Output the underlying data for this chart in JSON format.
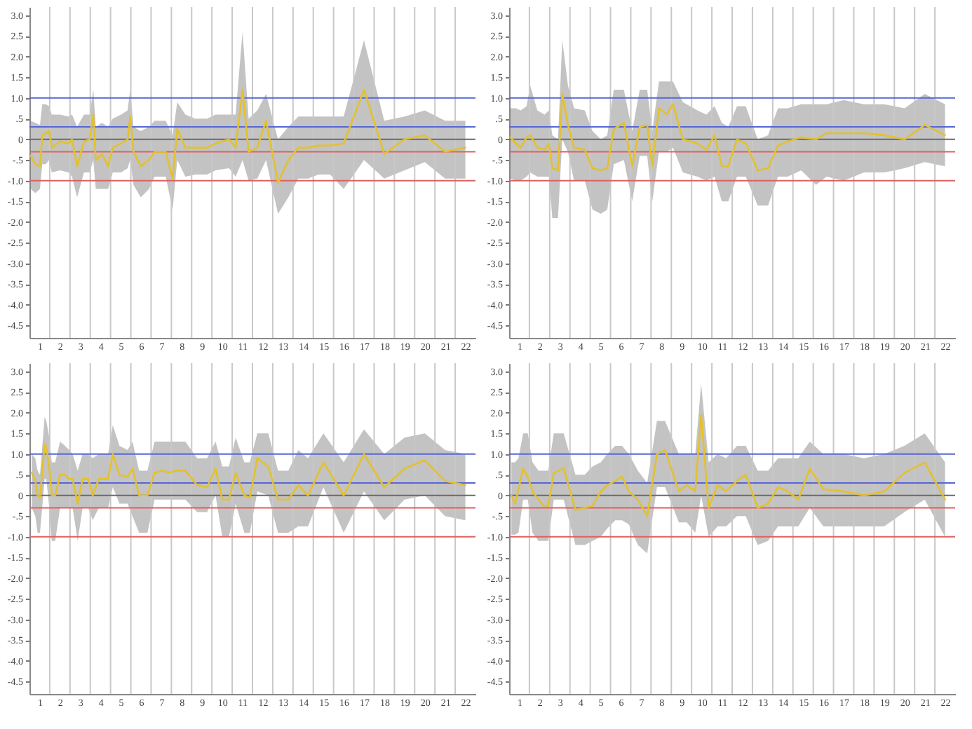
{
  "chart_data": [
    {
      "type": "line",
      "xlim": [
        0.5,
        22.5
      ],
      "ylim": [
        -4.8,
        3.2
      ],
      "xticks": [
        1,
        2,
        3,
        4,
        5,
        6,
        7,
        8,
        9,
        10,
        11,
        12,
        13,
        14,
        15,
        16,
        17,
        18,
        19,
        20,
        21,
        22
      ],
      "yticks": [
        {
          "value": 3,
          "label": "3.0"
        },
        2.5,
        {
          "value": 2,
          "label": "2.0"
        },
        1.5,
        {
          "value": 1,
          "label": "1.0"
        },
        {
          "value": 0.5,
          "label": ".5"
        },
        0,
        {
          "value": -0.5,
          "label": "-.5"
        },
        {
          "value": -1,
          "label": "-1.0"
        },
        -1.5,
        {
          "value": -2,
          "label": "-2.0"
        },
        -2.5,
        {
          "value": -3,
          "label": "-3.0"
        },
        -3.5,
        {
          "value": -4,
          "label": "-4.0"
        },
        -4.5
      ],
      "ref_lines": [
        {
          "axis": "x",
          "value": 1.5,
          "color": "#c8c8c8"
        },
        {
          "axis": "x",
          "value": 2.5,
          "color": "#c8c8c8"
        },
        {
          "axis": "x",
          "value": 3.5,
          "color": "#c8c8c8"
        },
        {
          "axis": "x",
          "value": 4.5,
          "color": "#c8c8c8"
        },
        {
          "axis": "x",
          "value": 5.5,
          "color": "#c8c8c8"
        },
        {
          "axis": "x",
          "value": 6.5,
          "color": "#c8c8c8"
        },
        {
          "axis": "x",
          "value": 7.5,
          "color": "#c8c8c8"
        },
        {
          "axis": "x",
          "value": 8.5,
          "color": "#c8c8c8"
        },
        {
          "axis": "x",
          "value": 9.5,
          "color": "#c8c8c8"
        },
        {
          "axis": "x",
          "value": 10.5,
          "color": "#c8c8c8"
        },
        {
          "axis": "x",
          "value": 11.5,
          "color": "#c8c8c8"
        },
        {
          "axis": "x",
          "value": 12.5,
          "color": "#c8c8c8"
        },
        {
          "axis": "x",
          "value": 13.5,
          "color": "#c8c8c8"
        },
        {
          "axis": "x",
          "value": 14.5,
          "color": "#c8c8c8"
        },
        {
          "axis": "x",
          "value": 15.5,
          "color": "#c8c8c8"
        },
        {
          "axis": "x",
          "value": 16.5,
          "color": "#c8c8c8"
        },
        {
          "axis": "x",
          "value": 17.5,
          "color": "#c8c8c8"
        },
        {
          "axis": "x",
          "value": 18.5,
          "color": "#c8c8c8"
        },
        {
          "axis": "x",
          "value": 19.5,
          "color": "#c8c8c8"
        },
        {
          "axis": "x",
          "value": 20.5,
          "color": "#c8c8c8"
        },
        {
          "axis": "x",
          "value": 21.5,
          "color": "#c8c8c8"
        },
        {
          "axis": "y",
          "value": 1.0,
          "color": "#5566d4"
        },
        {
          "axis": "y",
          "value": 0.3,
          "color": "#5566d4"
        },
        {
          "axis": "y",
          "value": 0,
          "color": "#6a6a6a"
        },
        {
          "axis": "y",
          "value": -0.3,
          "color": "#e06060"
        },
        {
          "axis": "y",
          "value": -1.0,
          "color": "#e06060"
        }
      ],
      "x": [
        0.56,
        0.79,
        1.02,
        1.13,
        1.3,
        1.48,
        1.6,
        2.01,
        2.43,
        2.6,
        2.85,
        3.19,
        3.47,
        3.65,
        3.77,
        4.08,
        4.38,
        4.61,
        5.02,
        5.34,
        5.47,
        5.63,
        5.99,
        6.4,
        6.67,
        7.22,
        7.56,
        7.79,
        8.19,
        8.68,
        9.26,
        9.68,
        10.34,
        10.67,
        11.01,
        11.31,
        11.74,
        12.17,
        12.76,
        13.27,
        13.76,
        14.24,
        14.76,
        15.33,
        16,
        17,
        18,
        19,
        20,
        21,
        22
      ],
      "series": [
        {
          "color": "#e3c12e",
          "values": [
            -0.4,
            -0.6,
            -0.65,
            0.1,
            0.15,
            0.2,
            -0.2,
            -0.05,
            -0.1,
            0,
            -0.65,
            -0.05,
            0,
            0.6,
            -0.5,
            -0.35,
            -0.65,
            -0.2,
            -0.1,
            0,
            0.55,
            -0.3,
            -0.65,
            -0.5,
            -0.3,
            -0.3,
            -0.95,
            0.25,
            -0.2,
            -0.2,
            -0.2,
            -0.1,
            0,
            -0.2,
            1.2,
            -0.3,
            -0.2,
            0.45,
            -1.05,
            -0.5,
            -0.2,
            -0.2,
            -0.15,
            -0.15,
            -0.1,
            1.2,
            -0.35,
            0,
            0.1,
            -0.3,
            -0.2
          ],
          "lower": [
            -1.2,
            -1.3,
            -1.2,
            -0.6,
            -0.6,
            -0.5,
            -0.8,
            -0.75,
            -0.8,
            -0.9,
            -1.4,
            -0.8,
            -0.8,
            -0.5,
            -1.2,
            -1.2,
            -1.2,
            -0.8,
            -0.8,
            -0.7,
            -0.5,
            -1.1,
            -1.4,
            -1.2,
            -0.9,
            -0.9,
            -1.7,
            -0.5,
            -0.9,
            -0.85,
            -0.85,
            -0.75,
            -0.7,
            -0.9,
            -0.5,
            -1.0,
            -0.95,
            -0.5,
            -1.8,
            -1.4,
            -0.95,
            -0.95,
            -0.85,
            -0.85,
            -1.2,
            -0.5,
            -0.95,
            -0.75,
            -0.55,
            -0.95,
            -0.95
          ],
          "upper": [
            0.45,
            0.4,
            0.35,
            0.85,
            0.85,
            0.8,
            0.6,
            0.6,
            0.55,
            0.6,
            0.3,
            0.6,
            0.6,
            1.2,
            0.3,
            0.4,
            0.3,
            0.5,
            0.6,
            0.7,
            1.2,
            0.3,
            0.2,
            0.3,
            0.45,
            0.45,
            0.1,
            0.9,
            0.6,
            0.5,
            0.5,
            0.6,
            0.6,
            0.6,
            2.6,
            0.5,
            0.7,
            1.1,
            0.0,
            0.3,
            0.55,
            0.55,
            0.55,
            0.55,
            0.55,
            2.4,
            0.45,
            0.55,
            0.7,
            0.45,
            0.45
          ]
        }
      ]
    },
    {
      "type": "line",
      "xlim": [
        0.5,
        22.5
      ],
      "ylim": [
        -4.8,
        3.2
      ],
      "xticks": [
        1,
        2,
        3,
        4,
        5,
        6,
        7,
        8,
        9,
        10,
        11,
        12,
        13,
        14,
        15,
        16,
        17,
        18,
        19,
        20,
        21,
        22
      ],
      "yticks": [
        {
          "value": 3,
          "label": "3.0"
        },
        2.5,
        {
          "value": 2,
          "label": "2.0"
        },
        1.5,
        {
          "value": 1,
          "label": "1.0"
        },
        {
          "value": 0.5,
          "label": ".5"
        },
        0,
        {
          "value": -0.5,
          "label": "-.5"
        },
        {
          "value": -1,
          "label": "-1.0"
        },
        -1.5,
        {
          "value": -2,
          "label": "-2.0"
        },
        -2.5,
        {
          "value": -3,
          "label": "-3.0"
        },
        -3.5,
        {
          "value": -4,
          "label": "-4.0"
        },
        -4.5
      ],
      "ref_lines": [
        {
          "axis": "x",
          "value": 1.5,
          "color": "#c8c8c8"
        },
        {
          "axis": "x",
          "value": 2.5,
          "color": "#c8c8c8"
        },
        {
          "axis": "x",
          "value": 3.5,
          "color": "#c8c8c8"
        },
        {
          "axis": "x",
          "value": 4.5,
          "color": "#c8c8c8"
        },
        {
          "axis": "x",
          "value": 5.5,
          "color": "#c8c8c8"
        },
        {
          "axis": "x",
          "value": 6.5,
          "color": "#c8c8c8"
        },
        {
          "axis": "x",
          "value": 7.5,
          "color": "#c8c8c8"
        },
        {
          "axis": "x",
          "value": 8.5,
          "color": "#c8c8c8"
        },
        {
          "axis": "x",
          "value": 9.5,
          "color": "#c8c8c8"
        },
        {
          "axis": "x",
          "value": 10.5,
          "color": "#c8c8c8"
        },
        {
          "axis": "x",
          "value": 11.5,
          "color": "#c8c8c8"
        },
        {
          "axis": "x",
          "value": 12.5,
          "color": "#c8c8c8"
        },
        {
          "axis": "x",
          "value": 13.5,
          "color": "#c8c8c8"
        },
        {
          "axis": "x",
          "value": 14.5,
          "color": "#c8c8c8"
        },
        {
          "axis": "x",
          "value": 15.5,
          "color": "#c8c8c8"
        },
        {
          "axis": "x",
          "value": 16.5,
          "color": "#c8c8c8"
        },
        {
          "axis": "x",
          "value": 17.5,
          "color": "#c8c8c8"
        },
        {
          "axis": "x",
          "value": 18.5,
          "color": "#c8c8c8"
        },
        {
          "axis": "x",
          "value": 19.5,
          "color": "#c8c8c8"
        },
        {
          "axis": "x",
          "value": 20.5,
          "color": "#c8c8c8"
        },
        {
          "axis": "x",
          "value": 21.5,
          "color": "#c8c8c8"
        },
        {
          "axis": "y",
          "value": 1.0,
          "color": "#5566d4"
        },
        {
          "axis": "y",
          "value": 0.3,
          "color": "#5566d4"
        },
        {
          "axis": "y",
          "value": 0,
          "color": "#6a6a6a"
        },
        {
          "axis": "y",
          "value": -0.3,
          "color": "#e06060"
        },
        {
          "axis": "y",
          "value": -1.0,
          "color": "#e06060"
        }
      ],
      "x": [
        0.56,
        0.84,
        1.07,
        1.36,
        1.54,
        1.89,
        2.25,
        2.46,
        2.63,
        2.91,
        3.12,
        3.4,
        3.7,
        4.23,
        4.61,
        5.02,
        5.34,
        5.66,
        6.16,
        6.57,
        6.94,
        7.31,
        7.56,
        7.89,
        8.28,
        8.58,
        9.07,
        9.79,
        10.23,
        10.63,
        10.99,
        11.31,
        11.74,
        12.17,
        12.76,
        13.27,
        13.76,
        14.24,
        14.9,
        15.64,
        16.16,
        17,
        18,
        19,
        20,
        21,
        22
      ],
      "series": [
        {
          "color": "#e3c12e",
          "values": [
            0.05,
            -0.1,
            -0.2,
            0.05,
            0.1,
            -0.2,
            -0.25,
            -0.1,
            -0.7,
            -0.75,
            1.1,
            0.35,
            -0.2,
            -0.25,
            -0.7,
            -0.75,
            -0.7,
            0.25,
            0.4,
            -0.65,
            0.3,
            0.35,
            -0.65,
            0.75,
            0.6,
            0.85,
            0,
            -0.1,
            -0.25,
            0.1,
            -0.65,
            -0.65,
            0,
            -0.1,
            -0.75,
            -0.7,
            -0.15,
            -0.05,
            0.05,
            0,
            0.15,
            0.15,
            0.15,
            0.1,
            0,
            0.35,
            0.1
          ],
          "lower": [
            -0.95,
            -1.0,
            -1.0,
            -0.9,
            -0.8,
            -0.9,
            -0.9,
            -0.9,
            -1.9,
            -1.9,
            0.0,
            -0.3,
            -1.0,
            -1.0,
            -1.7,
            -1.8,
            -1.7,
            -0.6,
            -0.5,
            -1.5,
            -0.4,
            -0.4,
            -1.5,
            -0.3,
            -0.3,
            -0.2,
            -0.8,
            -0.9,
            -1.0,
            -0.9,
            -1.5,
            -1.5,
            -0.9,
            -0.9,
            -1.6,
            -1.6,
            -0.9,
            -0.9,
            -0.75,
            -1.1,
            -0.9,
            -1.0,
            -0.8,
            -0.8,
            -0.7,
            -0.55,
            -0.65
          ],
          "upper": [
            0.75,
            0.75,
            0.7,
            0.8,
            1.3,
            0.7,
            0.6,
            0.7,
            0.1,
            0.0,
            2.4,
            1.3,
            0.75,
            0.7,
            0.2,
            0.0,
            0.1,
            1.2,
            1.2,
            0.2,
            1.2,
            1.2,
            0.2,
            1.4,
            1.4,
            1.4,
            0.9,
            0.7,
            0.6,
            0.8,
            0.4,
            0.3,
            0.8,
            0.8,
            0.0,
            0.1,
            0.75,
            0.75,
            0.85,
            0.85,
            0.85,
            0.95,
            0.85,
            0.85,
            0.75,
            1.1,
            0.85
          ]
        }
      ]
    },
    {
      "type": "line",
      "xlim": [
        0.5,
        22.5
      ],
      "ylim": [
        -4.8,
        3.2
      ],
      "xticks": [
        1,
        2,
        3,
        4,
        5,
        6,
        7,
        8,
        9,
        10,
        11,
        12,
        13,
        14,
        15,
        16,
        17,
        18,
        19,
        20,
        21,
        22
      ],
      "yticks": [
        {
          "value": 3,
          "label": "3.0"
        },
        2.5,
        {
          "value": 2,
          "label": "2.0"
        },
        1.5,
        {
          "value": 1,
          "label": "1.0"
        },
        {
          "value": 0.5,
          "label": ".5"
        },
        0,
        {
          "value": -0.5,
          "label": "-.5"
        },
        {
          "value": -1,
          "label": "-1.0"
        },
        -1.5,
        {
          "value": -2,
          "label": "-2.0"
        },
        -2.5,
        {
          "value": -3,
          "label": "-3.0"
        },
        -3.5,
        {
          "value": -4,
          "label": "-4.0"
        },
        -4.5
      ],
      "ref_lines": [
        {
          "axis": "x",
          "value": 1.5,
          "color": "#c8c8c8"
        },
        {
          "axis": "x",
          "value": 2.5,
          "color": "#c8c8c8"
        },
        {
          "axis": "x",
          "value": 3.5,
          "color": "#c8c8c8"
        },
        {
          "axis": "x",
          "value": 4.5,
          "color": "#c8c8c8"
        },
        {
          "axis": "x",
          "value": 5.5,
          "color": "#c8c8c8"
        },
        {
          "axis": "x",
          "value": 6.5,
          "color": "#c8c8c8"
        },
        {
          "axis": "x",
          "value": 7.5,
          "color": "#c8c8c8"
        },
        {
          "axis": "x",
          "value": 8.5,
          "color": "#c8c8c8"
        },
        {
          "axis": "x",
          "value": 9.5,
          "color": "#c8c8c8"
        },
        {
          "axis": "x",
          "value": 10.5,
          "color": "#c8c8c8"
        },
        {
          "axis": "x",
          "value": 11.5,
          "color": "#c8c8c8"
        },
        {
          "axis": "x",
          "value": 12.5,
          "color": "#c8c8c8"
        },
        {
          "axis": "x",
          "value": 13.5,
          "color": "#c8c8c8"
        },
        {
          "axis": "x",
          "value": 14.5,
          "color": "#c8c8c8"
        },
        {
          "axis": "x",
          "value": 15.5,
          "color": "#c8c8c8"
        },
        {
          "axis": "x",
          "value": 16.5,
          "color": "#c8c8c8"
        },
        {
          "axis": "x",
          "value": 17.5,
          "color": "#c8c8c8"
        },
        {
          "axis": "x",
          "value": 18.5,
          "color": "#c8c8c8"
        },
        {
          "axis": "x",
          "value": 19.5,
          "color": "#c8c8c8"
        },
        {
          "axis": "x",
          "value": 20.5,
          "color": "#c8c8c8"
        },
        {
          "axis": "x",
          "value": 21.5,
          "color": "#c8c8c8"
        },
        {
          "axis": "y",
          "value": 1.0,
          "color": "#5566d4"
        },
        {
          "axis": "y",
          "value": 0.3,
          "color": "#5566d4"
        },
        {
          "axis": "y",
          "value": 0,
          "color": "#6a6a6a"
        },
        {
          "axis": "y",
          "value": -0.3,
          "color": "#e06060"
        },
        {
          "axis": "y",
          "value": -1.0,
          "color": "#e06060"
        }
      ],
      "x": [
        0.61,
        0.79,
        0.9,
        1.02,
        1.25,
        1.33,
        1.48,
        1.6,
        1.77,
        2.01,
        2.25,
        2.46,
        2.63,
        2.88,
        3.12,
        3.4,
        3.62,
        3.92,
        4.38,
        4.61,
        4.94,
        5.34,
        5.58,
        5.91,
        6.32,
        6.67,
        7.04,
        7.41,
        7.7,
        8.19,
        8.77,
        9.26,
        9.68,
        10.01,
        10.34,
        10.67,
        11.1,
        11.37,
        11.74,
        12.28,
        12.76,
        13.27,
        13.76,
        14.24,
        15,
        16,
        17,
        18,
        19,
        20,
        21,
        22
      ],
      "series": [
        {
          "color": "#e3c12e",
          "values": [
            0.55,
            0.35,
            0,
            -0.05,
            1.25,
            1.15,
            0.65,
            0,
            0,
            0.5,
            0.5,
            0.4,
            0.4,
            -0.2,
            0.4,
            0.4,
            0,
            0.4,
            0.4,
            1.0,
            0.5,
            0.45,
            0.65,
            0,
            0,
            0.55,
            0.6,
            0.55,
            0.6,
            0.6,
            0.25,
            0.2,
            0.65,
            -0.1,
            -0.1,
            0.55,
            0,
            -0.05,
            0.9,
            0.7,
            -0.1,
            -0.1,
            0.25,
            0,
            0.8,
            0,
            1.0,
            0.2,
            0.65,
            0.85,
            0.35,
            0.25
          ],
          "lower": [
            -0.3,
            -0.5,
            -0.9,
            -0.9,
            0.4,
            0.4,
            -0.3,
            -1.1,
            -1.1,
            -0.3,
            -0.3,
            -0.3,
            -0.3,
            -1.1,
            -0.3,
            -0.3,
            -0.6,
            -0.3,
            -0.3,
            0.2,
            -0.2,
            -0.2,
            -0.5,
            -0.9,
            -0.9,
            -0.1,
            -0.1,
            -0.1,
            -0.1,
            -0.1,
            -0.4,
            -0.4,
            0,
            -1.0,
            -1.0,
            -0.2,
            -0.9,
            -0.9,
            0.1,
            0,
            -0.9,
            -0.9,
            -0.75,
            -0.75,
            0.2,
            -0.9,
            0.1,
            -0.6,
            -0.1,
            0,
            -0.5,
            -0.6
          ],
          "upper": [
            1.0,
            0.9,
            0.6,
            0.5,
            1.9,
            1.8,
            1.4,
            0.8,
            0.8,
            1.3,
            1.2,
            1.1,
            1.0,
            0.6,
            1.0,
            1.0,
            0.9,
            1.0,
            1.0,
            1.7,
            1.2,
            1.1,
            1.3,
            0.6,
            0.6,
            1.3,
            1.3,
            1.3,
            1.3,
            1.3,
            0.9,
            0.9,
            1.3,
            0.7,
            0.7,
            1.4,
            0.8,
            0.8,
            1.5,
            1.5,
            0.6,
            0.6,
            1.1,
            0.9,
            1.5,
            0.8,
            1.6,
            1.0,
            1.4,
            1.5,
            1.1,
            1.0
          ]
        }
      ]
    },
    {
      "type": "line",
      "xlim": [
        0.5,
        22.5
      ],
      "ylim": [
        -4.8,
        3.2
      ],
      "xticks": [
        1,
        2,
        3,
        4,
        5,
        6,
        7,
        8,
        9,
        10,
        11,
        12,
        13,
        14,
        15,
        16,
        17,
        18,
        19,
        20,
        21,
        22
      ],
      "yticks": [
        {
          "value": 3,
          "label": "3.0"
        },
        2.5,
        {
          "value": 2,
          "label": "2.0"
        },
        1.5,
        {
          "value": 1,
          "label": "1.0"
        },
        {
          "value": 0.5,
          "label": ".5"
        },
        0,
        {
          "value": -0.5,
          "label": "-.5"
        },
        {
          "value": -1,
          "label": "-1.0"
        },
        -1.5,
        {
          "value": -2,
          "label": "-2.0"
        },
        -2.5,
        {
          "value": -3,
          "label": "-3.0"
        },
        -3.5,
        {
          "value": -4,
          "label": "-4.0"
        },
        -4.5
      ],
      "ref_lines": [
        {
          "axis": "x",
          "value": 1.5,
          "color": "#c8c8c8"
        },
        {
          "axis": "x",
          "value": 2.5,
          "color": "#c8c8c8"
        },
        {
          "axis": "x",
          "value": 3.5,
          "color": "#c8c8c8"
        },
        {
          "axis": "x",
          "value": 4.5,
          "color": "#c8c8c8"
        },
        {
          "axis": "x",
          "value": 5.5,
          "color": "#c8c8c8"
        },
        {
          "axis": "x",
          "value": 6.5,
          "color": "#c8c8c8"
        },
        {
          "axis": "x",
          "value": 7.5,
          "color": "#c8c8c8"
        },
        {
          "axis": "x",
          "value": 8.5,
          "color": "#c8c8c8"
        },
        {
          "axis": "x",
          "value": 9.5,
          "color": "#c8c8c8"
        },
        {
          "axis": "x",
          "value": 10.5,
          "color": "#c8c8c8"
        },
        {
          "axis": "x",
          "value": 11.5,
          "color": "#c8c8c8"
        },
        {
          "axis": "x",
          "value": 12.5,
          "color": "#c8c8c8"
        },
        {
          "axis": "x",
          "value": 13.5,
          "color": "#c8c8c8"
        },
        {
          "axis": "x",
          "value": 14.5,
          "color": "#c8c8c8"
        },
        {
          "axis": "x",
          "value": 15.5,
          "color": "#c8c8c8"
        },
        {
          "axis": "x",
          "value": 16.5,
          "color": "#c8c8c8"
        },
        {
          "axis": "x",
          "value": 17.5,
          "color": "#c8c8c8"
        },
        {
          "axis": "x",
          "value": 18.5,
          "color": "#c8c8c8"
        },
        {
          "axis": "x",
          "value": 19.5,
          "color": "#c8c8c8"
        },
        {
          "axis": "x",
          "value": 20.5,
          "color": "#c8c8c8"
        },
        {
          "axis": "x",
          "value": 21.5,
          "color": "#c8c8c8"
        },
        {
          "axis": "y",
          "value": 1.0,
          "color": "#5566d4"
        },
        {
          "axis": "y",
          "value": 0.3,
          "color": "#5566d4"
        },
        {
          "axis": "y",
          "value": 0,
          "color": "#6a6a6a"
        },
        {
          "axis": "y",
          "value": -0.3,
          "color": "#e06060"
        },
        {
          "axis": "y",
          "value": -1.0,
          "color": "#e06060"
        }
      ],
      "x": [
        0.61,
        0.79,
        0.96,
        1.19,
        1.42,
        1.65,
        1.95,
        2.19,
        2.43,
        2.7,
        3.19,
        3.77,
        4.23,
        4.61,
        5.02,
        5.34,
        5.73,
        6.07,
        6.4,
        6.85,
        7.31,
        7.79,
        8.19,
        8.87,
        9.26,
        9.68,
        9.97,
        10.34,
        10.78,
        11.2,
        11.74,
        12.17,
        12.76,
        13.27,
        13.76,
        14.24,
        14.76,
        15.33,
        16,
        17,
        18,
        19,
        20,
        21,
        22
      ],
      "series": [
        {
          "color": "#e3c12e",
          "values": [
            0,
            -0.2,
            0.15,
            0.65,
            0.45,
            0.1,
            -0.1,
            -0.25,
            -0.25,
            0.55,
            0.65,
            -0.35,
            -0.3,
            -0.25,
            0.1,
            0.25,
            0.35,
            0.45,
            0.1,
            -0.1,
            -0.5,
            1.0,
            1.1,
            0.1,
            0.25,
            0.1,
            1.95,
            -0.3,
            0.25,
            0.1,
            0.35,
            0.5,
            -0.3,
            -0.2,
            0.2,
            0.1,
            -0.1,
            0.65,
            0.15,
            0.1,
            0,
            0.1,
            0.55,
            0.8,
            -0.1
          ],
          "lower": [
            -0.95,
            -0.95,
            -0.9,
            -0.1,
            -0.1,
            -0.9,
            -1.1,
            -1.1,
            -1.1,
            -0.1,
            -0.1,
            -1.2,
            -1.2,
            -1.1,
            -1.0,
            -0.8,
            -0.6,
            -0.6,
            -0.7,
            -1.2,
            -1.4,
            0.2,
            0.2,
            -0.65,
            -0.65,
            -0.9,
            0,
            -1.0,
            -0.75,
            -0.75,
            -0.5,
            -0.5,
            -1.2,
            -1.1,
            -0.75,
            -0.75,
            -0.75,
            -0.3,
            -0.75,
            -0.75,
            -0.75,
            -0.75,
            -0.4,
            -0.1,
            -1.0
          ],
          "upper": [
            0.8,
            0.8,
            0.9,
            1.5,
            1.5,
            0.8,
            0.6,
            0.6,
            0.6,
            1.5,
            1.5,
            0.5,
            0.5,
            0.7,
            0.8,
            1.0,
            1.2,
            1.2,
            1.0,
            0.6,
            0.3,
            1.8,
            1.8,
            1.0,
            1.0,
            1.0,
            2.7,
            0.8,
            1.0,
            0.9,
            1.2,
            1.2,
            0.6,
            0.6,
            0.9,
            0.9,
            0.9,
            1.3,
            1.0,
            1.0,
            0.9,
            1.0,
            1.2,
            1.5,
            0.8
          ]
        }
      ]
    }
  ]
}
